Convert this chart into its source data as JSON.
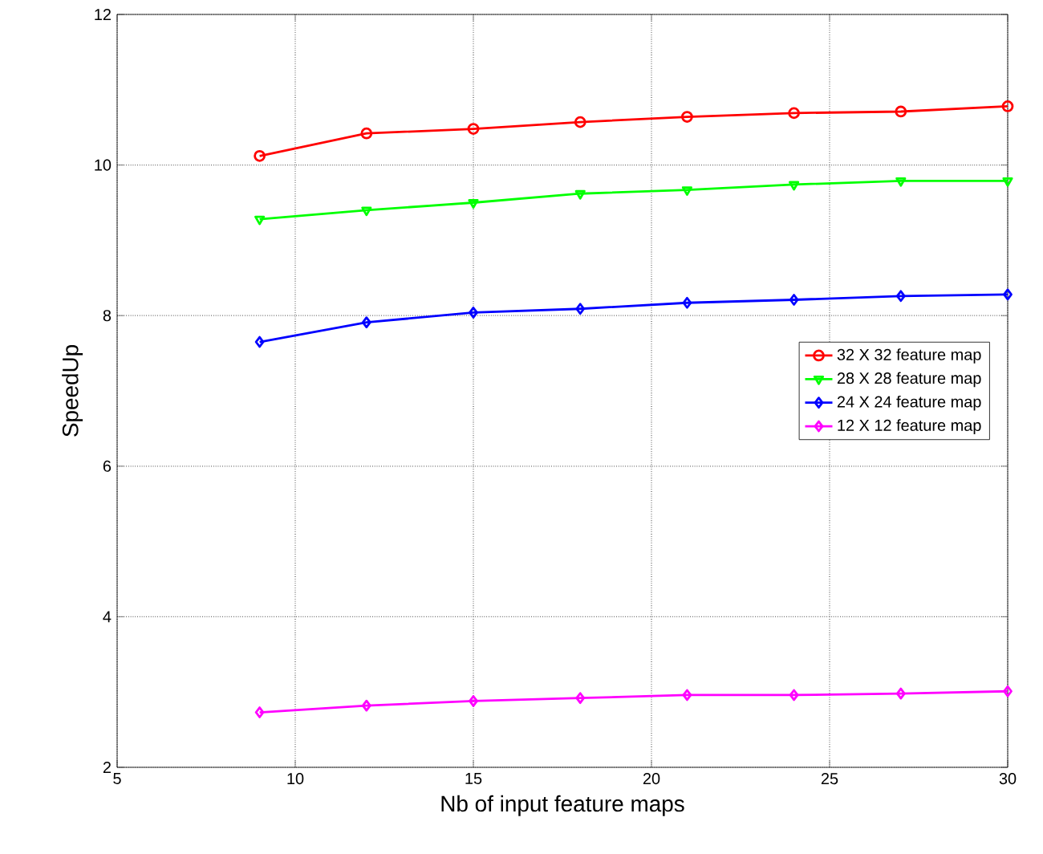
{
  "chart_data": {
    "type": "line",
    "xlabel": "Nb of input feature maps",
    "ylabel": "SpeedUp",
    "x": [
      9,
      12,
      15,
      18,
      21,
      24,
      27,
      30
    ],
    "series": [
      {
        "name": "32 X 32 feature map",
        "color": "#ff0000",
        "marker": "circle",
        "values": [
          10.12,
          10.42,
          10.48,
          10.57,
          10.64,
          10.69,
          10.71,
          10.78
        ]
      },
      {
        "name": "28 X 28 feature map",
        "color": "#00ff00",
        "marker": "triangle",
        "values": [
          9.28,
          9.4,
          9.5,
          9.62,
          9.67,
          9.74,
          9.79,
          9.79
        ]
      },
      {
        "name": "24 X 24 feature map",
        "color": "#0000ff",
        "marker": "diamond",
        "values": [
          7.65,
          7.91,
          8.04,
          8.09,
          8.17,
          8.21,
          8.26,
          8.28
        ]
      },
      {
        "name": "12 X 12 feature map",
        "color": "#ff00ff",
        "marker": "diamond",
        "values": [
          2.73,
          2.82,
          2.88,
          2.92,
          2.96,
          2.96,
          2.98,
          3.01
        ]
      }
    ],
    "xlim": [
      5,
      30
    ],
    "ylim": [
      2,
      12
    ],
    "xticks": [
      5,
      10,
      15,
      20,
      25,
      30
    ],
    "yticks": [
      2,
      4,
      6,
      8,
      10,
      12
    ],
    "grid": true,
    "legend": "right",
    "line_style": "solid"
  }
}
